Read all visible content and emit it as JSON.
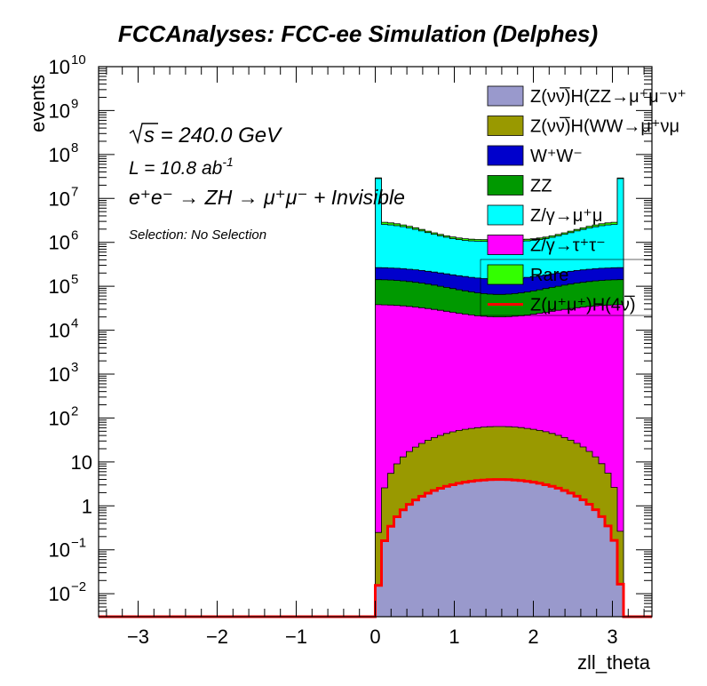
{
  "chart_data": {
    "type": "stacked-histogram",
    "title": "FCCAnalyses: FCC-ee Simulation (Delphes)",
    "xlabel": "zll_theta",
    "ylabel": "events",
    "xlim": [
      -3.5,
      3.5
    ],
    "ylim": [
      0.003,
      10000000000
    ],
    "yscale": "log",
    "x_ticks": [
      "−3",
      "−2",
      "−1",
      "0",
      "1",
      "2",
      "3"
    ],
    "x_tick_values": [
      -3,
      -2,
      -1,
      0,
      1,
      2,
      3
    ],
    "y_ticks": [
      {
        "base": "10",
        "exp": "10",
        "v": 10000000000
      },
      {
        "base": "10",
        "exp": "9",
        "v": 1000000000
      },
      {
        "base": "10",
        "exp": "8",
        "v": 100000000
      },
      {
        "base": "10",
        "exp": "7",
        "v": 10000000
      },
      {
        "base": "10",
        "exp": "6",
        "v": 1000000
      },
      {
        "base": "10",
        "exp": "5",
        "v": 100000
      },
      {
        "base": "10",
        "exp": "4",
        "v": 10000
      },
      {
        "base": "10",
        "exp": "3",
        "v": 1000
      },
      {
        "base": "10",
        "exp": "2",
        "v": 100
      },
      {
        "base": "10",
        "exp": "",
        "v": 10
      },
      {
        "base": "1",
        "exp": "",
        "v": 1
      },
      {
        "base": "10",
        "exp": "−1",
        "v": 0.1
      },
      {
        "base": "10",
        "exp": "−2",
        "v": 0.01
      }
    ],
    "annotations": {
      "sqrt_s": "s = 240.0 GeV",
      "lumi": "L = 10.8 ab",
      "lumi_exp": "-1",
      "process": "e⁺e⁻ → ZH → μ⁺μ⁻ + Invisible",
      "selection": "Selection: No Selection"
    },
    "bins": {
      "start": 0.0,
      "width": 0.0785,
      "count": 40
    },
    "series": [
      {
        "name": "Z(νν̅)H(ZZ→μ⁺μ⁻ν⁺",
        "color": "#9999cc",
        "fill": true,
        "shape": "signal",
        "peak": 4
      },
      {
        "name": "Z(νν̅)H(WW→μ⁺νμ",
        "color": "#999900",
        "fill": true,
        "shape": "signal",
        "peak": 60
      },
      {
        "name": "Z/γ→τ⁺τ⁻",
        "color": "#ff00ff",
        "fill": true,
        "shape": "tautau",
        "peak": 20000
      },
      {
        "name": "ZZ",
        "color": "#009900",
        "fill": true,
        "shape": "zz",
        "peak": 45000
      },
      {
        "name": "W⁺W⁻",
        "color": "#0000cc",
        "fill": true,
        "shape": "ww",
        "peak": 80000
      },
      {
        "name": "Z/γ→μ⁺μ",
        "color": "#00ffff",
        "fill": true,
        "shape": "mumu",
        "peak": 900000
      },
      {
        "name": "Rare",
        "color": "#33ff00",
        "fill": true,
        "shape": "rare",
        "peak": 100000
      },
      {
        "name": "Z(μ⁺μ⁺)H(4ν̅)",
        "color": "#ff0000",
        "fill": false,
        "shape": "signal",
        "peak": 4
      }
    ],
    "legend_order": [
      {
        "name": "Z(νν̅)H(ZZ→μ⁺μ⁻ν⁺",
        "color": "#9999cc",
        "type": "box"
      },
      {
        "name": "Z(νν̅)H(WW→μ⁺νμ",
        "color": "#999900",
        "type": "box"
      },
      {
        "name": "W⁺W⁻",
        "color": "#0000cc",
        "type": "box"
      },
      {
        "name": "ZZ",
        "color": "#009900",
        "type": "box"
      },
      {
        "name": "Z/γ→μ⁺μ",
        "color": "#00ffff",
        "type": "box"
      },
      {
        "name": "Z/γ→τ⁺τ⁻",
        "color": "#ff00ff",
        "type": "box"
      },
      {
        "name": "Rare",
        "color": "#33ff00",
        "type": "box"
      },
      {
        "name": "Z(μ⁺μ⁺)H(4ν̅)",
        "color": "#ff0000",
        "type": "line"
      }
    ],
    "legend_position": "top-right",
    "grid": false
  }
}
